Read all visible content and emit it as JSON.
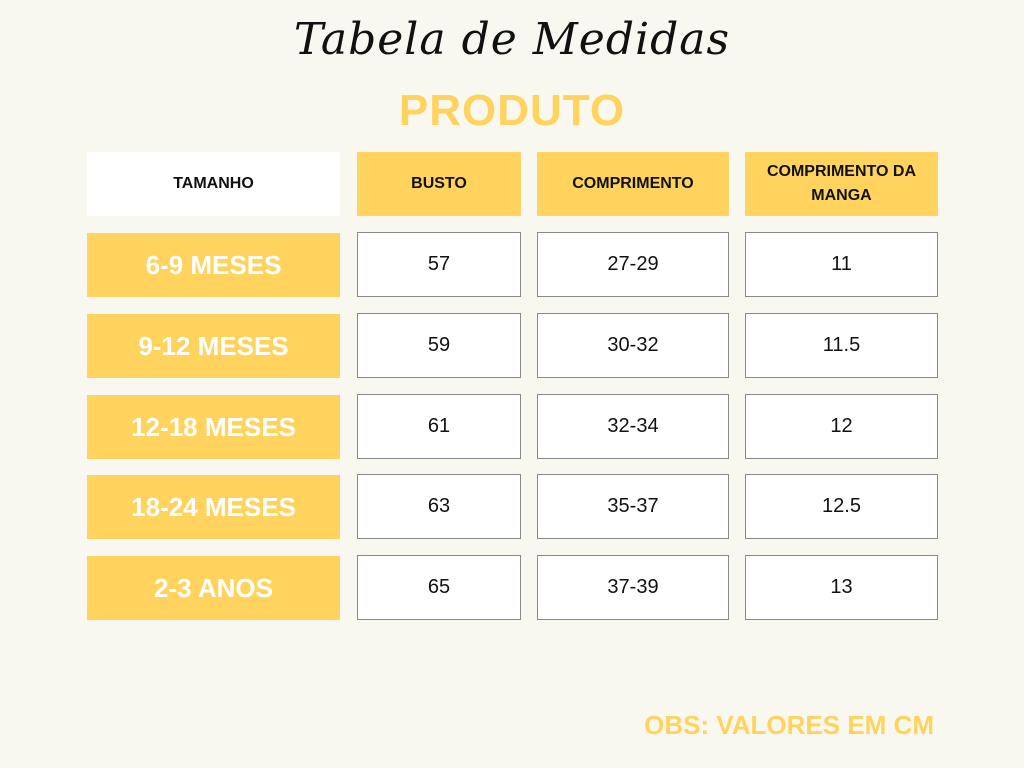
{
  "title": "Tabela de Medidas",
  "subtitle": "PRODUTO",
  "colors": {
    "accent": "#ffd35e",
    "background": "#f9f8f0"
  },
  "table": {
    "headers": [
      "TAMANHO",
      "BUSTO",
      "COMPRIMENTO",
      "COMPRIMENTO DA MANGA"
    ],
    "rows": [
      {
        "size": "6-9 MESES",
        "busto": "57",
        "comprimento": "27-29",
        "manga": "11"
      },
      {
        "size": "9-12 MESES",
        "busto": "59",
        "comprimento": "30-32",
        "manga": "11.5"
      },
      {
        "size": "12-18 MESES",
        "busto": "61",
        "comprimento": "32-34",
        "manga": "12"
      },
      {
        "size": "18-24 MESES",
        "busto": "63",
        "comprimento": "35-37",
        "manga": "12.5"
      },
      {
        "size": "2-3 ANOS",
        "busto": "65",
        "comprimento": "37-39",
        "manga": "13"
      }
    ]
  },
  "note": "OBS: VALORES EM CM"
}
